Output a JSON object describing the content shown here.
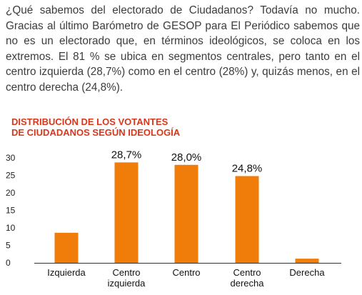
{
  "article": {
    "paragraph": "¿Qué sabemos del electorado de Ciudadanos? Todavía no mucho. Gracias al último Barómetro de GESOP para El Periódico sabemos que no es un electorado que, en términos ideológicos, se coloca en los extremos. El 81 % se ubica en segmentos centrales, pero tanto en el centro izquierda (28,7%) como en el centro (28%) y, quizás menos, en el centro derecha (24,8%)."
  },
  "chart_data": {
    "type": "bar",
    "title_lines": [
      "DISTRIBUCIÓN DE LOS VOTANTES",
      "DE CIUDADANOS SEGÚN IDEOLOGÍA"
    ],
    "categories": [
      [
        "Izquierda"
      ],
      [
        "Centro",
        "izquierda"
      ],
      [
        "Centro"
      ],
      [
        "Centro",
        "derecha"
      ],
      [
        "Derecha"
      ]
    ],
    "values": [
      8.6,
      28.7,
      28.0,
      24.8,
      1.2
    ],
    "data_labels": [
      "",
      "28,7%",
      "28,0%",
      "24,8%",
      ""
    ],
    "yticks": [
      0,
      5,
      10,
      15,
      20,
      25,
      30
    ],
    "ylim": [
      0,
      32
    ],
    "bar_color": "#f07d0a",
    "grid": false
  }
}
